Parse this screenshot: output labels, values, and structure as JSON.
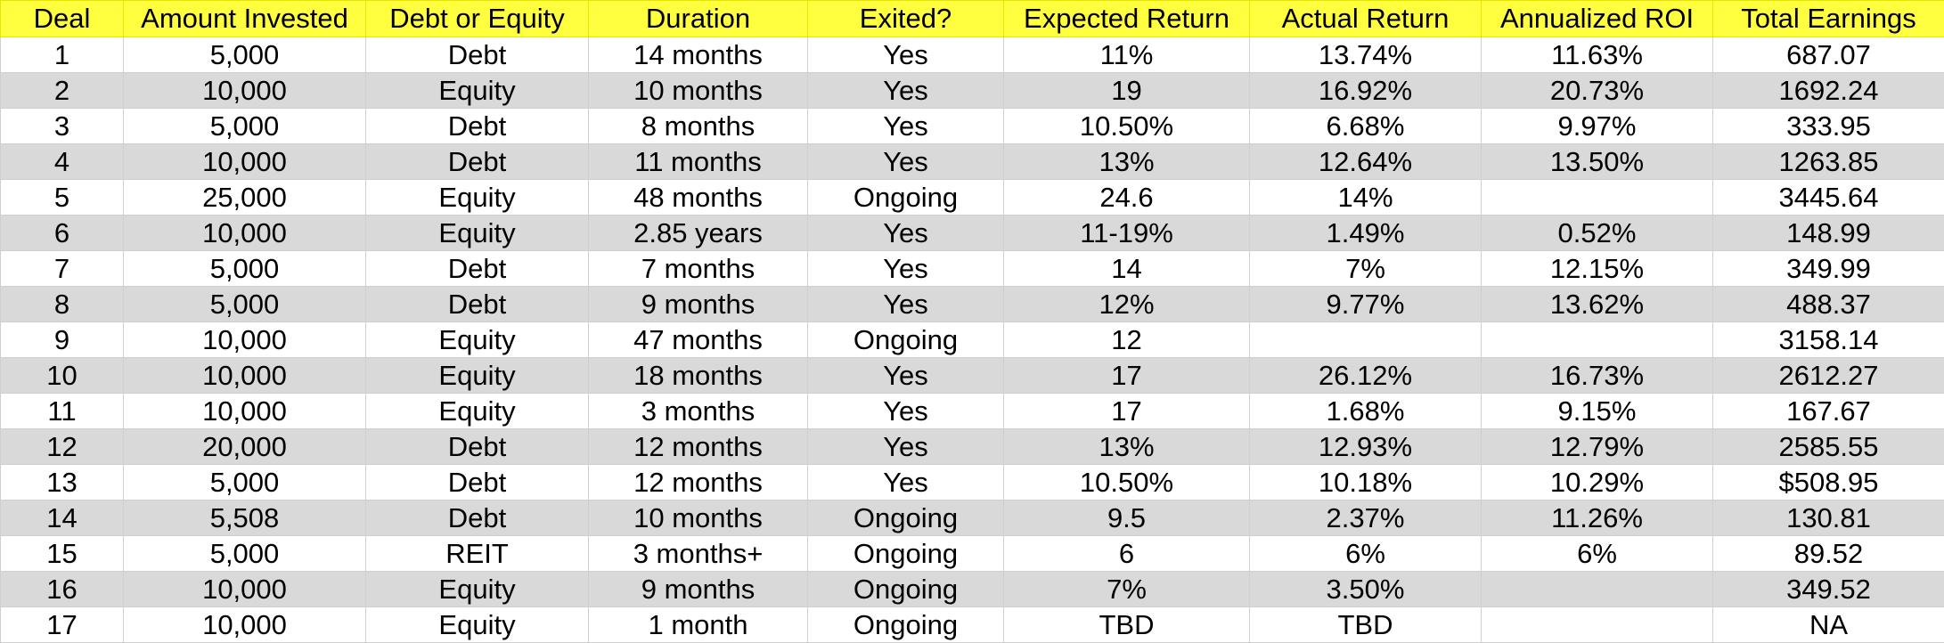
{
  "table": {
    "headers": [
      "Deal",
      "Amount Invested",
      "Debt or Equity",
      "Duration",
      "Exited?",
      "Expected Return",
      "Actual Return",
      "Annualized ROI",
      "Total Earnings"
    ],
    "rows": [
      [
        "1",
        "5,000",
        "Debt",
        "14 months",
        "Yes",
        "11%",
        "13.74%",
        "11.63%",
        "687.07"
      ],
      [
        "2",
        "10,000",
        "Equity",
        "10 months",
        "Yes",
        "19",
        "16.92%",
        "20.73%",
        "1692.24"
      ],
      [
        "3",
        "5,000",
        "Debt",
        "8 months",
        "Yes",
        "10.50%",
        "6.68%",
        "9.97%",
        "333.95"
      ],
      [
        "4",
        "10,000",
        "Debt",
        "11 months",
        "Yes",
        "13%",
        "12.64%",
        "13.50%",
        "1263.85"
      ],
      [
        "5",
        "25,000",
        "Equity",
        "48 months",
        "Ongoing",
        "24.6",
        "14%",
        "",
        "3445.64"
      ],
      [
        "6",
        "10,000",
        "Equity",
        "2.85 years",
        "Yes",
        "11-19%",
        "1.49%",
        "0.52%",
        "148.99"
      ],
      [
        "7",
        "5,000",
        "Debt",
        "7 months",
        "Yes",
        "14",
        "7%",
        "12.15%",
        "349.99"
      ],
      [
        "8",
        "5,000",
        "Debt",
        "9 months",
        "Yes",
        "12%",
        "9.77%",
        "13.62%",
        "488.37"
      ],
      [
        "9",
        "10,000",
        "Equity",
        "47 months",
        "Ongoing",
        "12",
        "",
        "",
        "3158.14"
      ],
      [
        "10",
        "10,000",
        "Equity",
        "18 months",
        "Yes",
        "17",
        "26.12%",
        "16.73%",
        "2612.27"
      ],
      [
        "11",
        "10,000",
        "Equity",
        "3 months",
        "Yes",
        "17",
        "1.68%",
        "9.15%",
        "167.67"
      ],
      [
        "12",
        "20,000",
        "Debt",
        "12 months",
        "Yes",
        "13%",
        "12.93%",
        "12.79%",
        "2585.55"
      ],
      [
        "13",
        "5,000",
        "Debt",
        "12 months",
        "Yes",
        "10.50%",
        "10.18%",
        "10.29%",
        "$508.95"
      ],
      [
        "14",
        "5,508",
        "Debt",
        "10 months",
        "Ongoing",
        "9.5",
        "2.37%",
        "11.26%",
        "130.81"
      ],
      [
        "15",
        "5,000",
        "REIT",
        "3 months+",
        "Ongoing",
        "6",
        "6%",
        "6%",
        "89.52"
      ],
      [
        "16",
        "10,000",
        "Equity",
        "9 months",
        "Ongoing",
        "7%",
        "3.50%",
        "",
        "349.52"
      ],
      [
        "17",
        "10,000",
        "Equity",
        "1 month",
        "Ongoing",
        "TBD",
        "TBD",
        "",
        "NA"
      ]
    ]
  },
  "colors": {
    "header_background": "#ffff40",
    "alternate_row_background": "#d9d9d9",
    "grid_line": "#cfcfcf"
  }
}
